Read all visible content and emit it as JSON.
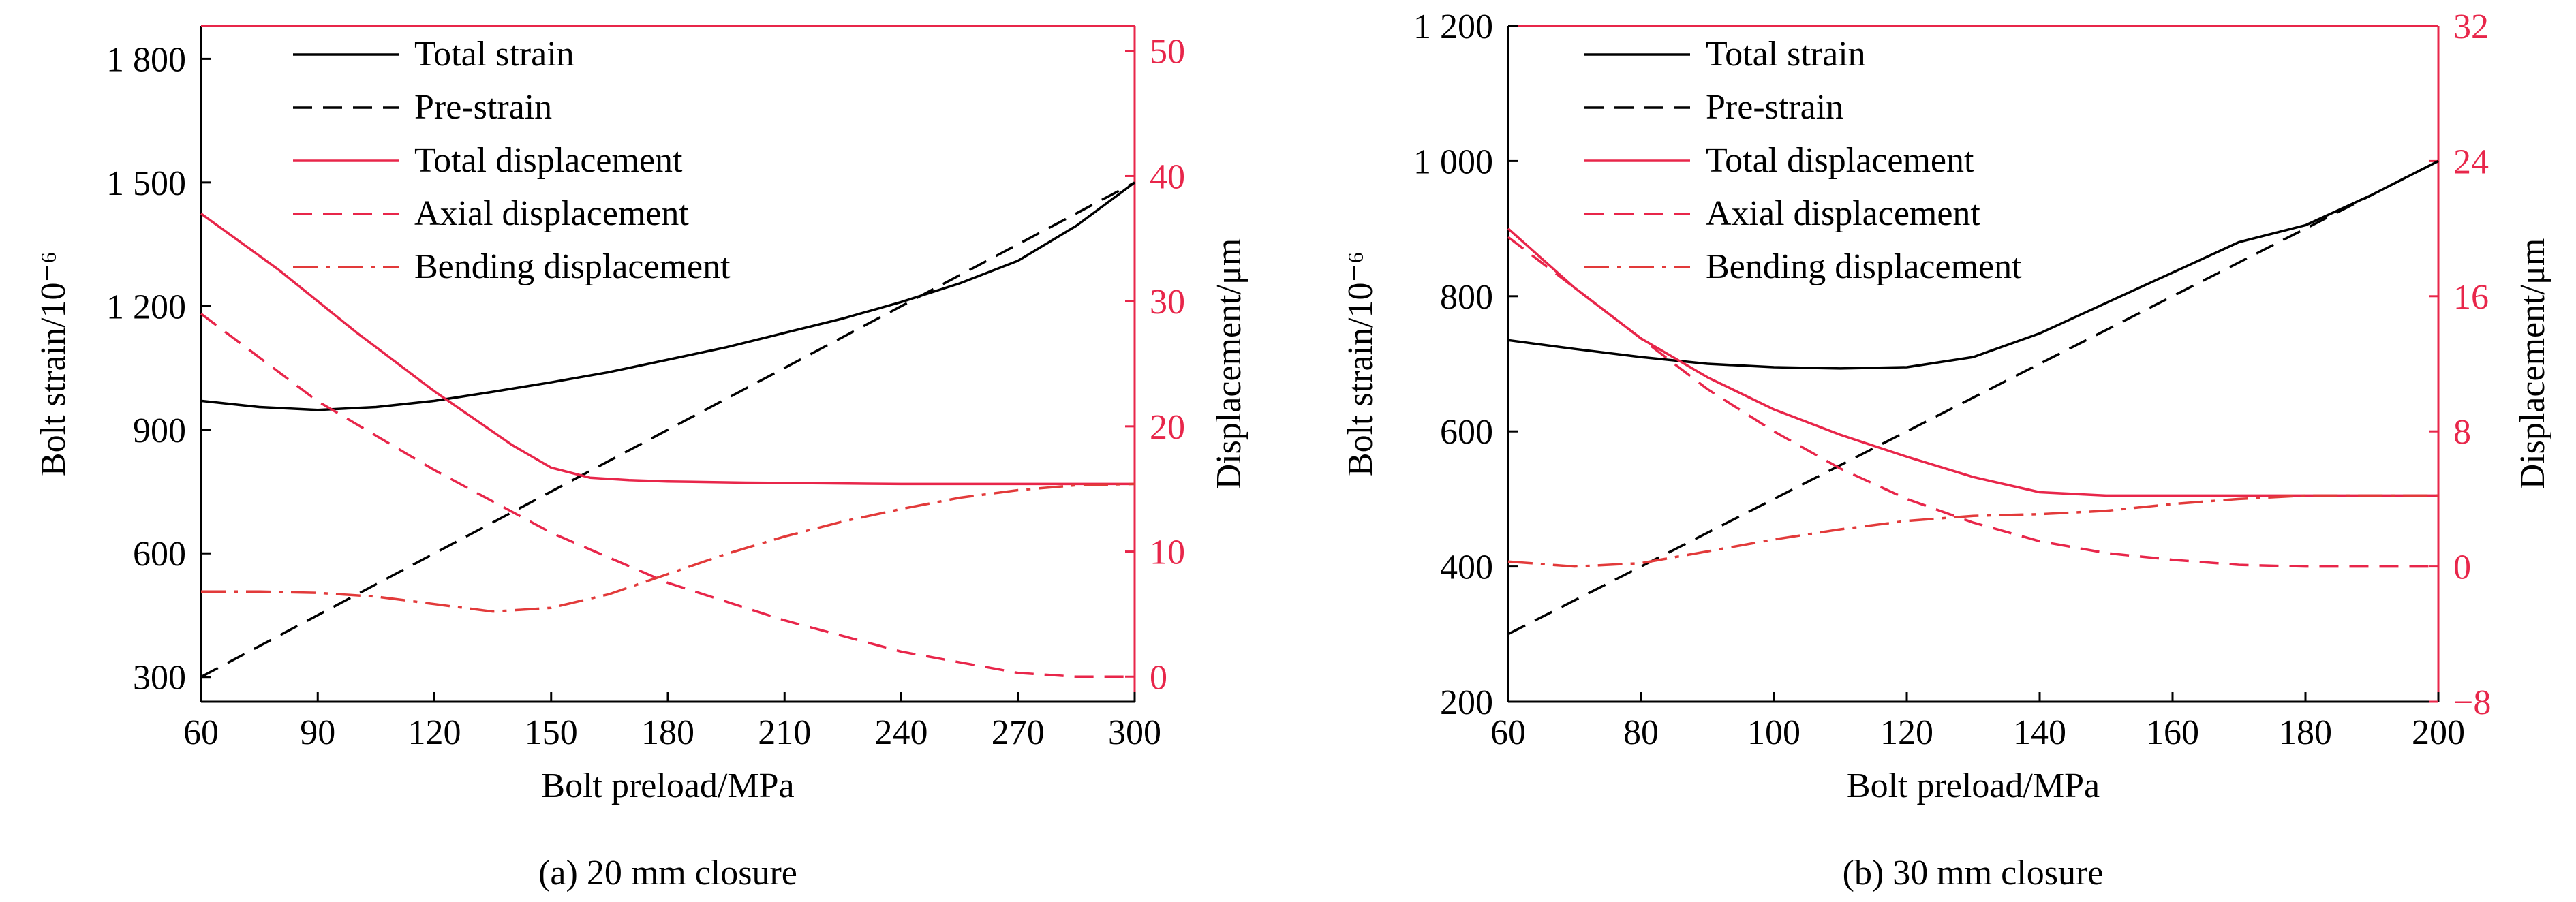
{
  "colors": {
    "black": "#000000",
    "red": "#e8264a",
    "dashdot": "#e23a3a",
    "axis_right": "#e8264a"
  },
  "chart_data": [
    {
      "type": "line",
      "caption": "(a) 20 mm closure",
      "xlabel": "Bolt preload/MPa",
      "ylabel_left": "Bolt strain/10⁻⁶",
      "ylabel_right": "Displacement/μm",
      "xlim": [
        60,
        300
      ],
      "ylim_left": [
        240,
        1880
      ],
      "ylim_right": [
        -2,
        52
      ],
      "xticks": [
        60,
        90,
        120,
        150,
        180,
        210,
        240,
        270,
        300
      ],
      "xtick_labels": [
        "60",
        "90",
        "120",
        "150",
        "180",
        "210",
        "240",
        "270",
        "300"
      ],
      "yticks_left": [
        300,
        600,
        900,
        1200,
        1500,
        1800
      ],
      "ytick_labels_left": [
        "300",
        "600",
        "900",
        "1 200",
        "1 500",
        "1 800"
      ],
      "yticks_right": [
        0,
        10,
        20,
        30,
        40,
        50
      ],
      "ytick_labels_right": [
        "0",
        "10",
        "20",
        "30",
        "40",
        "50"
      ],
      "legend": [
        "Total strain",
        "Pre-strain",
        "Total displacement",
        "Axial displacement",
        "Bending displacement"
      ],
      "legend_position": "top-left",
      "series": [
        {
          "name": "Total strain",
          "axis": "left",
          "style": "solid",
          "color": "black",
          "x": [
            60,
            75,
            90,
            105,
            120,
            135,
            150,
            165,
            180,
            195,
            210,
            225,
            240,
            255,
            270,
            285,
            300
          ],
          "y": [
            970,
            955,
            948,
            955,
            970,
            992,
            1015,
            1040,
            1070,
            1100,
            1135,
            1170,
            1210,
            1255,
            1310,
            1395,
            1500
          ]
        },
        {
          "name": "Pre-strain",
          "axis": "left",
          "style": "dashed",
          "color": "black",
          "x": [
            60,
            300
          ],
          "y": [
            300,
            1500
          ]
        },
        {
          "name": "Total displacement",
          "axis": "right",
          "style": "solid",
          "color": "red",
          "x": [
            60,
            80,
            100,
            120,
            140,
            150,
            160,
            170,
            180,
            200,
            220,
            240,
            260,
            280,
            300
          ],
          "y": [
            37,
            32.5,
            27.5,
            22.8,
            18.5,
            16.7,
            15.9,
            15.7,
            15.6,
            15.5,
            15.45,
            15.4,
            15.4,
            15.4,
            15.4
          ]
        },
        {
          "name": "Axial displacement",
          "axis": "right",
          "style": "dashed",
          "color": "red",
          "x": [
            60,
            90,
            120,
            150,
            180,
            210,
            240,
            270,
            285,
            300
          ],
          "y": [
            29,
            22,
            16.5,
            11.5,
            7.5,
            4.5,
            2,
            0.3,
            0,
            0
          ]
        },
        {
          "name": "Bending displacement",
          "axis": "right",
          "style": "dashdot",
          "color": "dashdot",
          "x": [
            60,
            75,
            90,
            105,
            120,
            135,
            150,
            165,
            180,
            195,
            210,
            225,
            240,
            255,
            270,
            285,
            300
          ],
          "y": [
            6.8,
            6.8,
            6.7,
            6.4,
            5.8,
            5.2,
            5.5,
            6.6,
            8.2,
            9.8,
            11.2,
            12.4,
            13.4,
            14.3,
            14.9,
            15.3,
            15.4
          ]
        }
      ]
    },
    {
      "type": "line",
      "caption": "(b) 30 mm closure",
      "xlabel": "Bolt preload/MPa",
      "ylabel_left": "Bolt strain/10⁻⁶",
      "ylabel_right": "Displacement/μm",
      "xlim": [
        60,
        200
      ],
      "ylim_left": [
        200,
        1200
      ],
      "ylim_right": [
        -8,
        32
      ],
      "xticks": [
        60,
        80,
        100,
        120,
        140,
        160,
        180,
        200
      ],
      "xtick_labels": [
        "60",
        "80",
        "100",
        "120",
        "140",
        "160",
        "180",
        "200"
      ],
      "yticks_left": [
        200,
        400,
        600,
        800,
        1000,
        1200
      ],
      "ytick_labels_left": [
        "200",
        "400",
        "600",
        "800",
        "1 000",
        "1 200"
      ],
      "yticks_right": [
        -8,
        0,
        8,
        16,
        24,
        32
      ],
      "ytick_labels_right": [
        "−8",
        "0",
        "8",
        "16",
        "24",
        "32"
      ],
      "legend": [
        "Total strain",
        "Pre-strain",
        "Total displacement",
        "Axial displacement",
        "Bending displacement"
      ],
      "legend_position": "top-left",
      "series": [
        {
          "name": "Total strain",
          "axis": "left",
          "style": "solid",
          "color": "black",
          "x": [
            60,
            70,
            80,
            90,
            100,
            110,
            120,
            130,
            140,
            150,
            160,
            170,
            180,
            190,
            200
          ],
          "y": [
            735,
            722,
            710,
            700,
            695,
            693,
            695,
            710,
            745,
            790,
            835,
            880,
            905,
            950,
            1000
          ]
        },
        {
          "name": "Pre-strain",
          "axis": "left",
          "style": "dashed",
          "color": "black",
          "x": [
            60,
            200
          ],
          "y": [
            300,
            1000
          ]
        },
        {
          "name": "Total displacement",
          "axis": "right",
          "style": "solid",
          "color": "red",
          "x": [
            60,
            70,
            80,
            90,
            100,
            110,
            120,
            130,
            140,
            150,
            160,
            170,
            180,
            190,
            200
          ],
          "y": [
            20,
            16.5,
            13.5,
            11.2,
            9.3,
            7.8,
            6.5,
            5.3,
            4.4,
            4.2,
            4.2,
            4.2,
            4.2,
            4.2,
            4.2
          ]
        },
        {
          "name": "Axial displacement",
          "axis": "right",
          "style": "dashed",
          "color": "red",
          "x": [
            60,
            70,
            80,
            90,
            100,
            110,
            120,
            130,
            140,
            150,
            160,
            170,
            180,
            190,
            200
          ],
          "y": [
            19.5,
            16.5,
            13.5,
            10.5,
            8,
            5.8,
            4,
            2.6,
            1.5,
            0.8,
            0.4,
            0.1,
            0,
            0,
            0
          ]
        },
        {
          "name": "Bending displacement",
          "axis": "right",
          "style": "dashdot",
          "color": "dashdot",
          "x": [
            60,
            70,
            80,
            90,
            100,
            110,
            120,
            130,
            140,
            150,
            160,
            170,
            180,
            190,
            200
          ],
          "y": [
            0.3,
            0,
            0.2,
            0.9,
            1.6,
            2.2,
            2.7,
            3,
            3.1,
            3.3,
            3.7,
            4,
            4.2,
            4.2,
            4.2
          ]
        }
      ]
    }
  ]
}
